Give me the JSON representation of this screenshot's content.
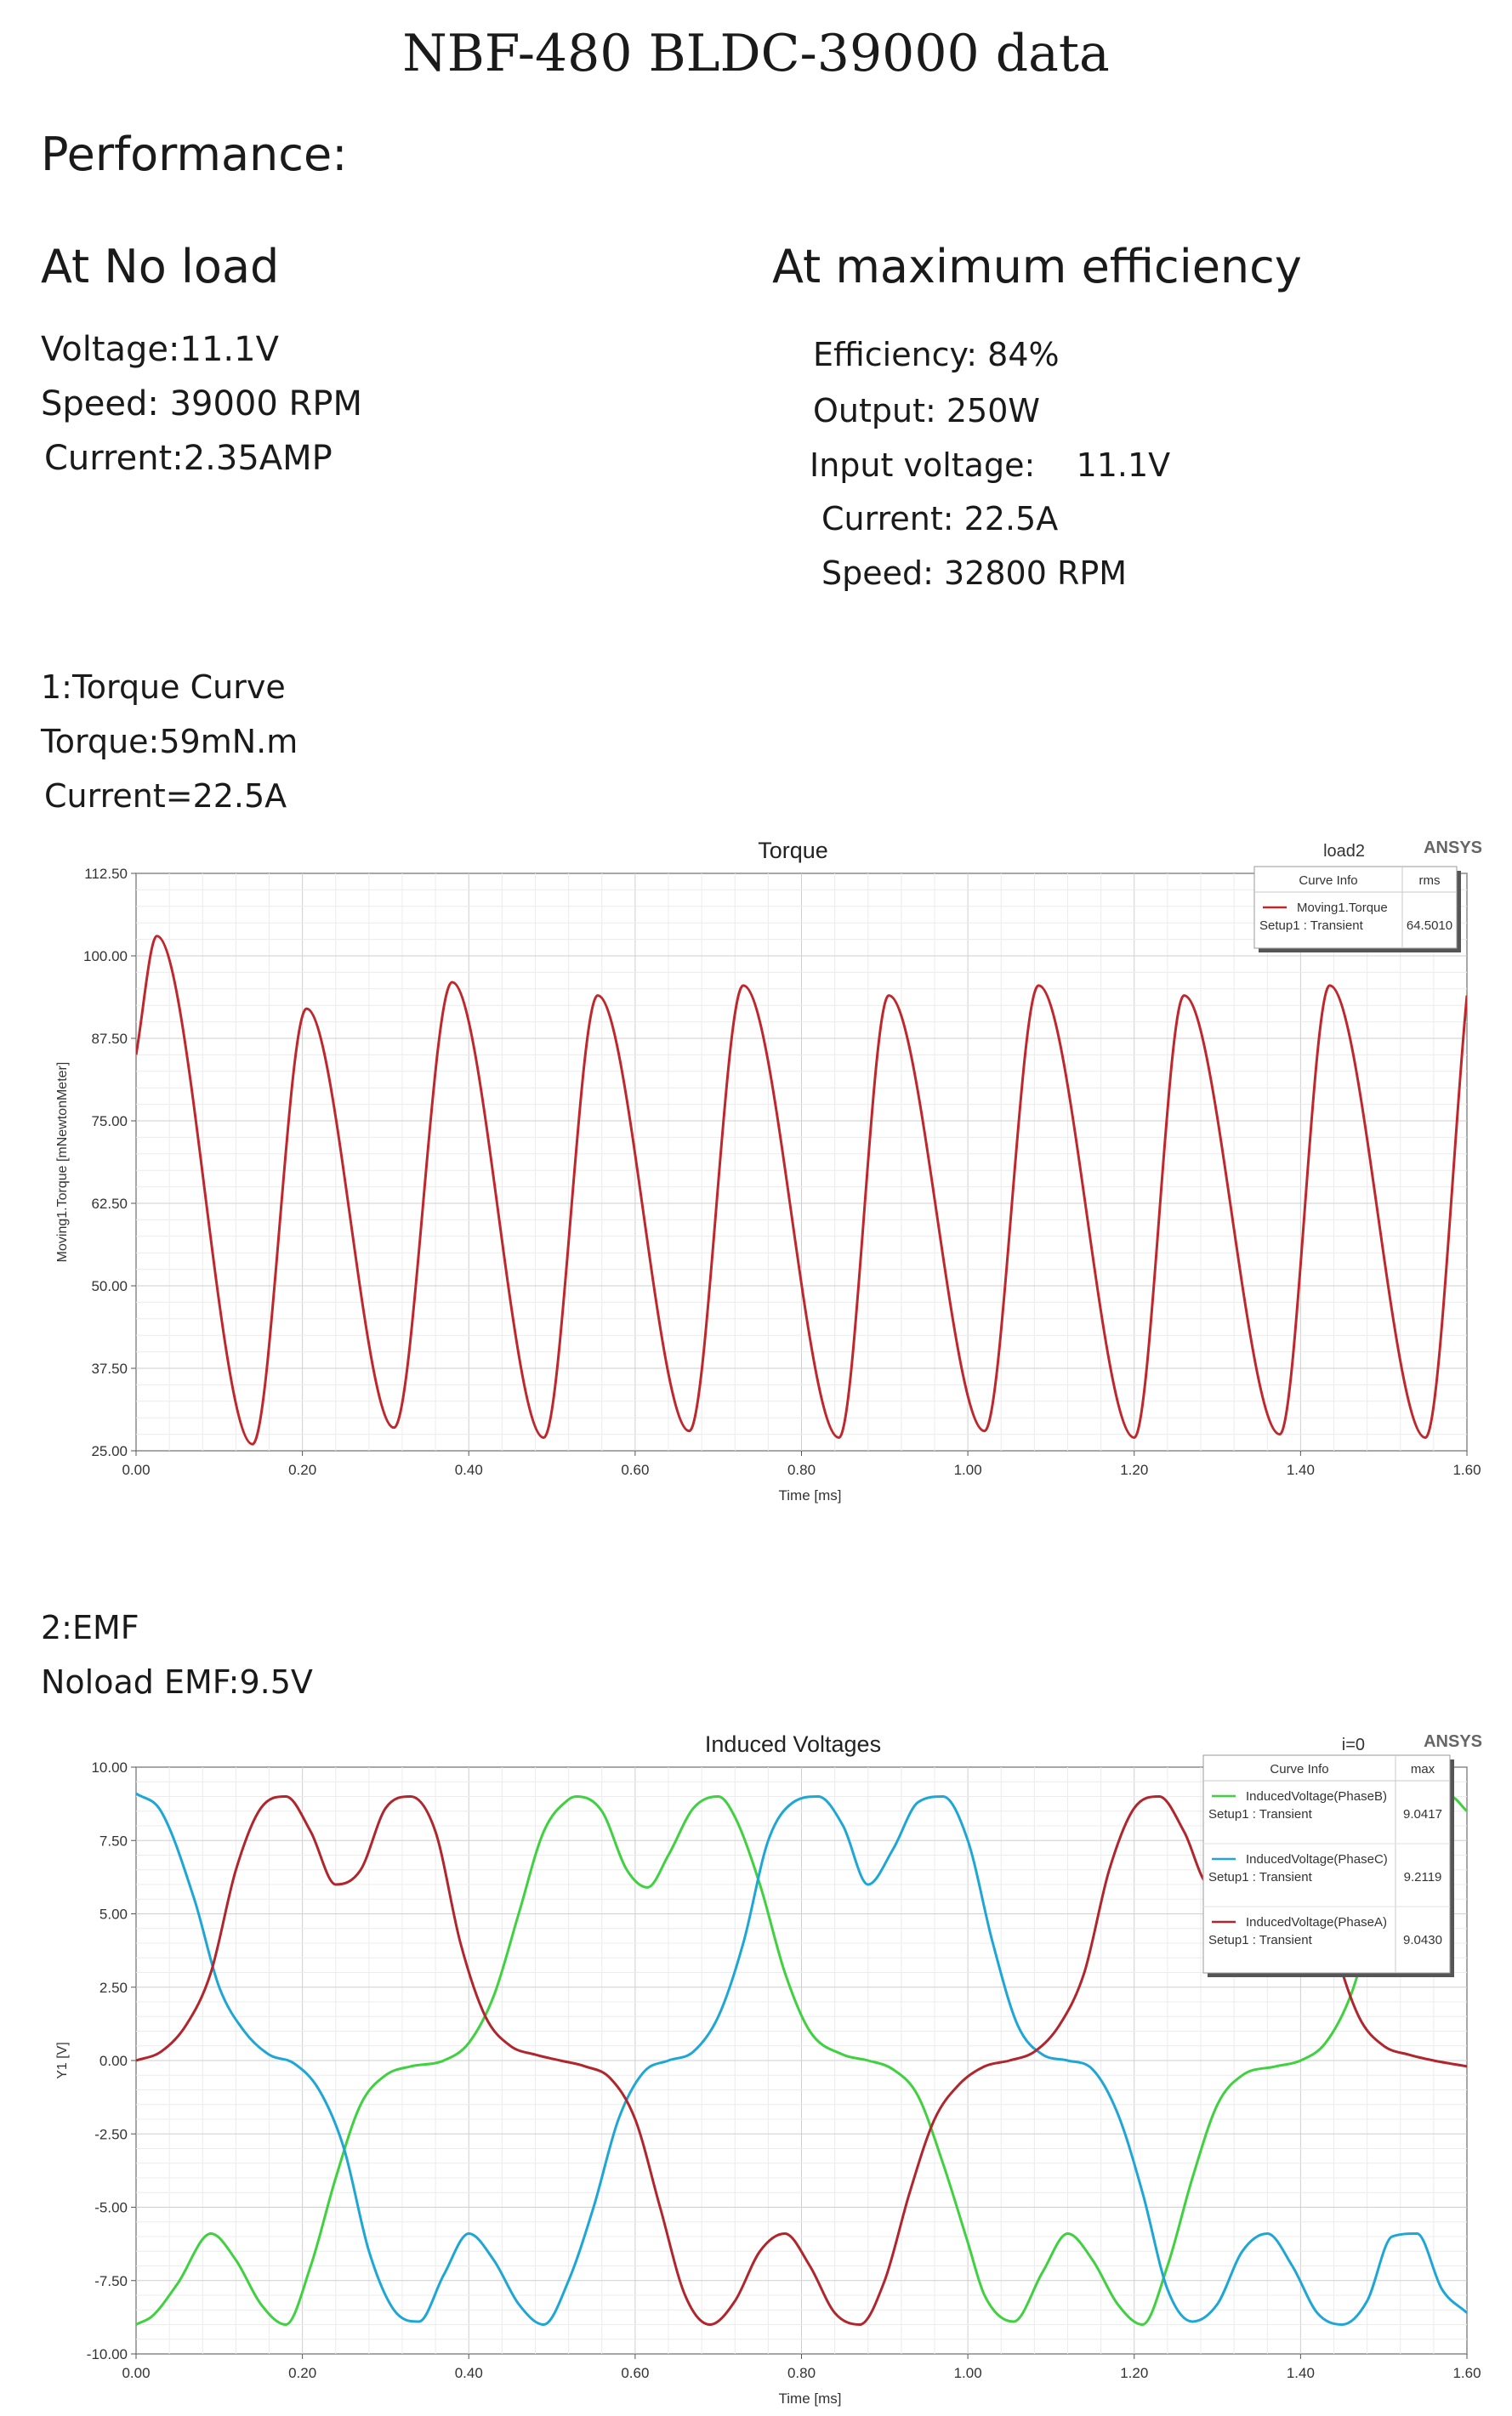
{
  "doc": {
    "title": "NBF-480 BLDC-39000 data",
    "performance_heading": "Performance:",
    "noload": {
      "heading": "At No load",
      "lines": [
        "Voltage:11.1V",
        "Speed: 39000 RPM",
        "Current:2.35AMP"
      ]
    },
    "maxeff": {
      "heading": "At maximum efficiency",
      "lines": [
        "Efficiency: 84%",
        "Output: 250W",
        "Input voltage:    11.1V",
        "Current: 22.5A",
        "Speed: 32800 RPM"
      ]
    },
    "section1": {
      "lines": [
        "1:Torque Curve",
        "Torque:59mN.m",
        "Current=22.5A"
      ]
    },
    "section2": {
      "lines": [
        "2:EMF",
        "Noload EMF:9.5V"
      ]
    }
  },
  "chart_data": [
    {
      "type": "line",
      "title": "Torque",
      "corner_label": "load2",
      "brand": "ANSYS",
      "xlabel": "Time [ms]",
      "ylabel": "Moving1.Torque [mNewtonMeter]",
      "xlim": [
        0,
        1.6
      ],
      "ylim": [
        25,
        112.5
      ],
      "xticks": [
        "0.00",
        "0.20",
        "0.40",
        "0.60",
        "0.80",
        "1.00",
        "1.20",
        "1.40",
        "1.60"
      ],
      "yticks": [
        "25.00",
        "37.50",
        "50.00",
        "62.50",
        "75.00",
        "87.50",
        "100.00",
        "112.50"
      ],
      "legend": {
        "header": [
          "Curve Info",
          "rms"
        ],
        "entries": [
          {
            "name": "Moving1.Torque",
            "setup": "Setup1 : Transient",
            "value": "64.5010",
            "color": "#c0272d"
          }
        ]
      },
      "series": [
        {
          "name": "Moving1.Torque",
          "color": "#c0272d",
          "x": [
            0.0,
            0.025,
            0.14,
            0.205,
            0.31,
            0.38,
            0.49,
            0.555,
            0.665,
            0.73,
            0.845,
            0.905,
            1.02,
            1.085,
            1.2,
            1.26,
            1.375,
            1.435,
            1.55,
            1.6
          ],
          "y": [
            85,
            103,
            26,
            92,
            28.5,
            96,
            27,
            94,
            28,
            95.5,
            27,
            94,
            28,
            95.5,
            27,
            94,
            27.5,
            95.5,
            27,
            94
          ]
        }
      ]
    },
    {
      "type": "line",
      "title": "Induced Voltages",
      "corner_label": "i=0",
      "brand": "ANSYS",
      "xlabel": "Time [ms]",
      "ylabel": "Y1 [V]",
      "xlim": [
        0,
        1.6
      ],
      "ylim": [
        -10,
        10
      ],
      "xticks": [
        "0.00",
        "0.20",
        "0.40",
        "0.60",
        "0.80",
        "1.00",
        "1.20",
        "1.40",
        "1.60"
      ],
      "yticks": [
        "-10.00",
        "-7.50",
        "-5.00",
        "-2.50",
        "0.00",
        "2.50",
        "5.00",
        "7.50",
        "10.00"
      ],
      "legend": {
        "header": [
          "Curve Info",
          "max"
        ],
        "entries": [
          {
            "name": "InducedVoltage(PhaseB)",
            "setup": "Setup1 : Transient",
            "value": "9.0417",
            "color": "#3fd13f"
          },
          {
            "name": "InducedVoltage(PhaseC)",
            "setup": "Setup1 : Transient",
            "value": "9.2119",
            "color": "#1ea7d6"
          },
          {
            "name": "InducedVoltage(PhaseA)",
            "setup": "Setup1 : Transient",
            "value": "9.0430",
            "color": "#b0262c"
          }
        ]
      },
      "series": [
        {
          "name": "InducedVoltage(PhaseB)",
          "color": "#3fd13f",
          "x": [
            0.0,
            0.02,
            0.05,
            0.09,
            0.12,
            0.15,
            0.18,
            0.21,
            0.24,
            0.27,
            0.3,
            0.33,
            0.37,
            0.4,
            0.43,
            0.46,
            0.49,
            0.52,
            0.53,
            0.56,
            0.59,
            0.615,
            0.64,
            0.67,
            0.7,
            0.72,
            0.75,
            0.78,
            0.81,
            0.85,
            0.88,
            0.91,
            0.94,
            0.97,
            1.0,
            1.02,
            1.055,
            1.09,
            1.12,
            1.15,
            1.18,
            1.21,
            1.24,
            1.27,
            1.3,
            1.33,
            1.37,
            1.4,
            1.43,
            1.46,
            1.49,
            1.52,
            1.55,
            1.58,
            1.6
          ],
          "y": [
            -9.0,
            -8.7,
            -7.6,
            -5.9,
            -6.8,
            -8.3,
            -9.0,
            -7.0,
            -4.0,
            -1.5,
            -0.5,
            -0.2,
            0.0,
            0.6,
            2.2,
            5.0,
            7.8,
            8.9,
            9.0,
            8.5,
            6.5,
            5.9,
            7.0,
            8.6,
            9.0,
            8.3,
            6.0,
            3.0,
            1.0,
            0.2,
            0.0,
            -0.3,
            -1.2,
            -3.5,
            -6.2,
            -8.0,
            -8.9,
            -7.2,
            -5.9,
            -6.8,
            -8.3,
            -9.0,
            -7.0,
            -4.0,
            -1.5,
            -0.5,
            -0.2,
            0.0,
            0.6,
            2.2,
            5.0,
            7.8,
            8.9,
            9.0,
            8.5
          ]
        },
        {
          "name": "InducedVoltage(PhaseC)",
          "color": "#1ea7d6",
          "x": [
            0.0,
            0.03,
            0.07,
            0.1,
            0.13,
            0.16,
            0.19,
            0.22,
            0.25,
            0.28,
            0.31,
            0.34,
            0.37,
            0.4,
            0.43,
            0.46,
            0.49,
            0.52,
            0.55,
            0.58,
            0.61,
            0.64,
            0.67,
            0.7,
            0.73,
            0.76,
            0.79,
            0.82,
            0.85,
            0.88,
            0.91,
            0.94,
            0.97,
            1.0,
            1.03,
            1.06,
            1.09,
            1.12,
            1.15,
            1.18,
            1.21,
            1.24,
            1.27,
            1.3,
            1.33,
            1.36,
            1.39,
            1.42,
            1.45,
            1.48,
            1.51,
            1.54,
            1.57,
            1.6
          ],
          "y": [
            9.1,
            8.5,
            5.5,
            2.5,
            1.0,
            0.2,
            -0.1,
            -1.0,
            -3.0,
            -6.5,
            -8.5,
            -8.9,
            -7.3,
            -5.9,
            -6.8,
            -8.3,
            -9.0,
            -7.5,
            -5.0,
            -2.0,
            -0.4,
            0.0,
            0.3,
            1.5,
            4.0,
            7.5,
            8.8,
            9.0,
            8.0,
            6.0,
            7.2,
            8.8,
            9.0,
            7.5,
            4.0,
            1.2,
            0.2,
            0.0,
            -0.3,
            -1.8,
            -4.5,
            -7.8,
            -8.9,
            -8.3,
            -6.5,
            -5.9,
            -7.0,
            -8.6,
            -9.0,
            -8.2,
            -6.0,
            -5.9,
            -7.8,
            -8.6
          ]
        },
        {
          "name": "InducedVoltage(PhaseA)",
          "color": "#b0262c",
          "x": [
            0.0,
            0.03,
            0.06,
            0.09,
            0.12,
            0.15,
            0.18,
            0.21,
            0.24,
            0.27,
            0.3,
            0.33,
            0.36,
            0.39,
            0.42,
            0.45,
            0.48,
            0.51,
            0.54,
            0.57,
            0.6,
            0.63,
            0.66,
            0.69,
            0.72,
            0.75,
            0.78,
            0.81,
            0.84,
            0.87,
            0.9,
            0.93,
            0.96,
            0.99,
            1.02,
            1.05,
            1.08,
            1.11,
            1.14,
            1.17,
            1.2,
            1.23,
            1.26,
            1.29,
            1.32,
            1.35,
            1.38,
            1.41,
            1.44,
            1.47,
            1.5,
            1.53,
            1.56,
            1.6
          ],
          "y": [
            0.0,
            0.3,
            1.2,
            3.0,
            6.5,
            8.6,
            9.0,
            7.8,
            6.0,
            6.5,
            8.6,
            9.0,
            7.8,
            4.0,
            1.5,
            0.5,
            0.2,
            0.0,
            -0.2,
            -0.6,
            -2.0,
            -5.0,
            -8.0,
            -9.0,
            -8.2,
            -6.5,
            -5.9,
            -7.0,
            -8.6,
            -9.0,
            -7.5,
            -4.5,
            -2.0,
            -0.8,
            -0.2,
            0.0,
            0.3,
            1.2,
            3.0,
            6.5,
            8.6,
            9.0,
            7.8,
            6.0,
            6.5,
            8.6,
            9.0,
            7.8,
            4.0,
            1.5,
            0.5,
            0.2,
            0.0,
            -0.2
          ]
        }
      ]
    }
  ]
}
